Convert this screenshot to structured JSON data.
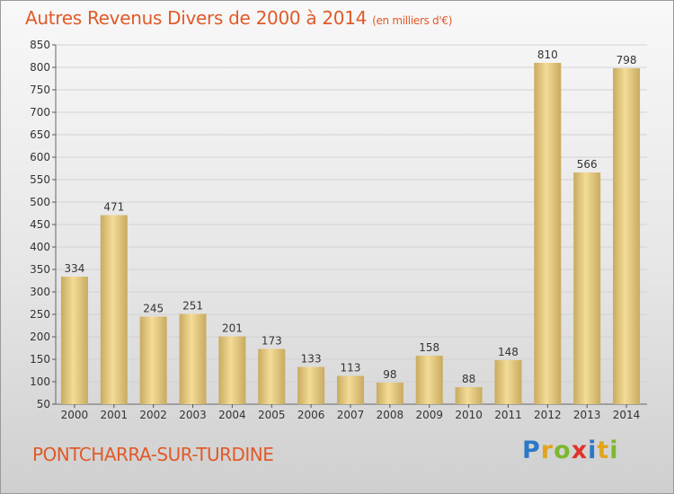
{
  "header": {
    "title": "Autres Revenus Divers de 2000 à 2014",
    "unit": "(en milliers d'€)"
  },
  "footer": {
    "city": "PONTCHARRA-SUR-TURDINE",
    "logo": [
      "P",
      "r",
      "o",
      "x",
      "i",
      "t",
      "i"
    ]
  },
  "colors": {
    "title": "#e05a28",
    "bar_light": "#f3dc97",
    "bar_dark": "#c9aa60",
    "logo": [
      "#2b78c8",
      "#e2a41c",
      "#7cb82f",
      "#e0332b",
      "#2b78c8",
      "#e2a41c",
      "#7cb82f"
    ]
  },
  "chart_data": {
    "type": "bar",
    "categories": [
      "2000",
      "2001",
      "2002",
      "2003",
      "2004",
      "2005",
      "2006",
      "2007",
      "2008",
      "2009",
      "2010",
      "2011",
      "2012",
      "2013",
      "2014"
    ],
    "values": [
      334,
      471,
      245,
      251,
      201,
      173,
      133,
      113,
      98,
      158,
      88,
      148,
      810,
      566,
      798
    ],
    "ylim": [
      50,
      850
    ],
    "yticks": [
      50,
      100,
      150,
      200,
      250,
      300,
      350,
      400,
      450,
      500,
      550,
      600,
      650,
      700,
      750,
      800,
      850
    ],
    "grid": true,
    "legend": "none"
  }
}
